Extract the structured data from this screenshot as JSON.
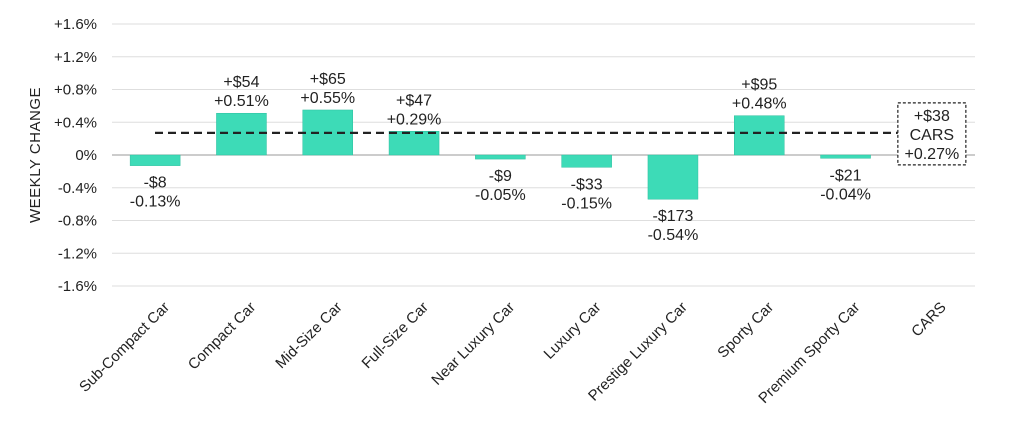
{
  "chart_data": {
    "type": "bar",
    "ylabel": "WEEKLY CHANGE",
    "xlabel": "",
    "title": "",
    "ylim": [
      -1.6,
      1.6
    ],
    "yticks": [
      1.6,
      1.2,
      0.8,
      0.4,
      0,
      -0.4,
      -0.8,
      -1.2,
      -1.6
    ],
    "ytick_labels": [
      "+1.6%",
      "+1.2%",
      "+0.8%",
      "+0.4%",
      "0%",
      "-0.4%",
      "-0.8%",
      "-1.2%",
      "-1.6%"
    ],
    "grid": true,
    "bar_color": "#3ddbb7",
    "categories": [
      "Sub-Compact Car",
      "Compact Car",
      "Mid-Size Car",
      "Full-Size Car",
      "Near Luxury Car",
      "Luxury Car",
      "Prestige Luxury Car",
      "Sporty Car",
      "Premium Sporty Car",
      "CARS"
    ],
    "values": [
      -0.13,
      0.51,
      0.55,
      0.29,
      -0.05,
      -0.15,
      -0.54,
      0.48,
      -0.04,
      null
    ],
    "dollar_labels": [
      "-$8",
      "+$54",
      "+$65",
      "+$47",
      "-$9",
      "-$33",
      "-$173",
      "+$95",
      "-$21",
      ""
    ],
    "percent_labels": [
      "-0.13%",
      "+0.51%",
      "+0.55%",
      "+0.29%",
      "-0.05%",
      "-0.15%",
      "-0.54%",
      "+0.48%",
      "-0.04%",
      ""
    ],
    "reference_line": {
      "value": 0.27,
      "style": "dashed",
      "label_lines": [
        "+$38",
        "CARS",
        "+0.27%"
      ]
    }
  }
}
